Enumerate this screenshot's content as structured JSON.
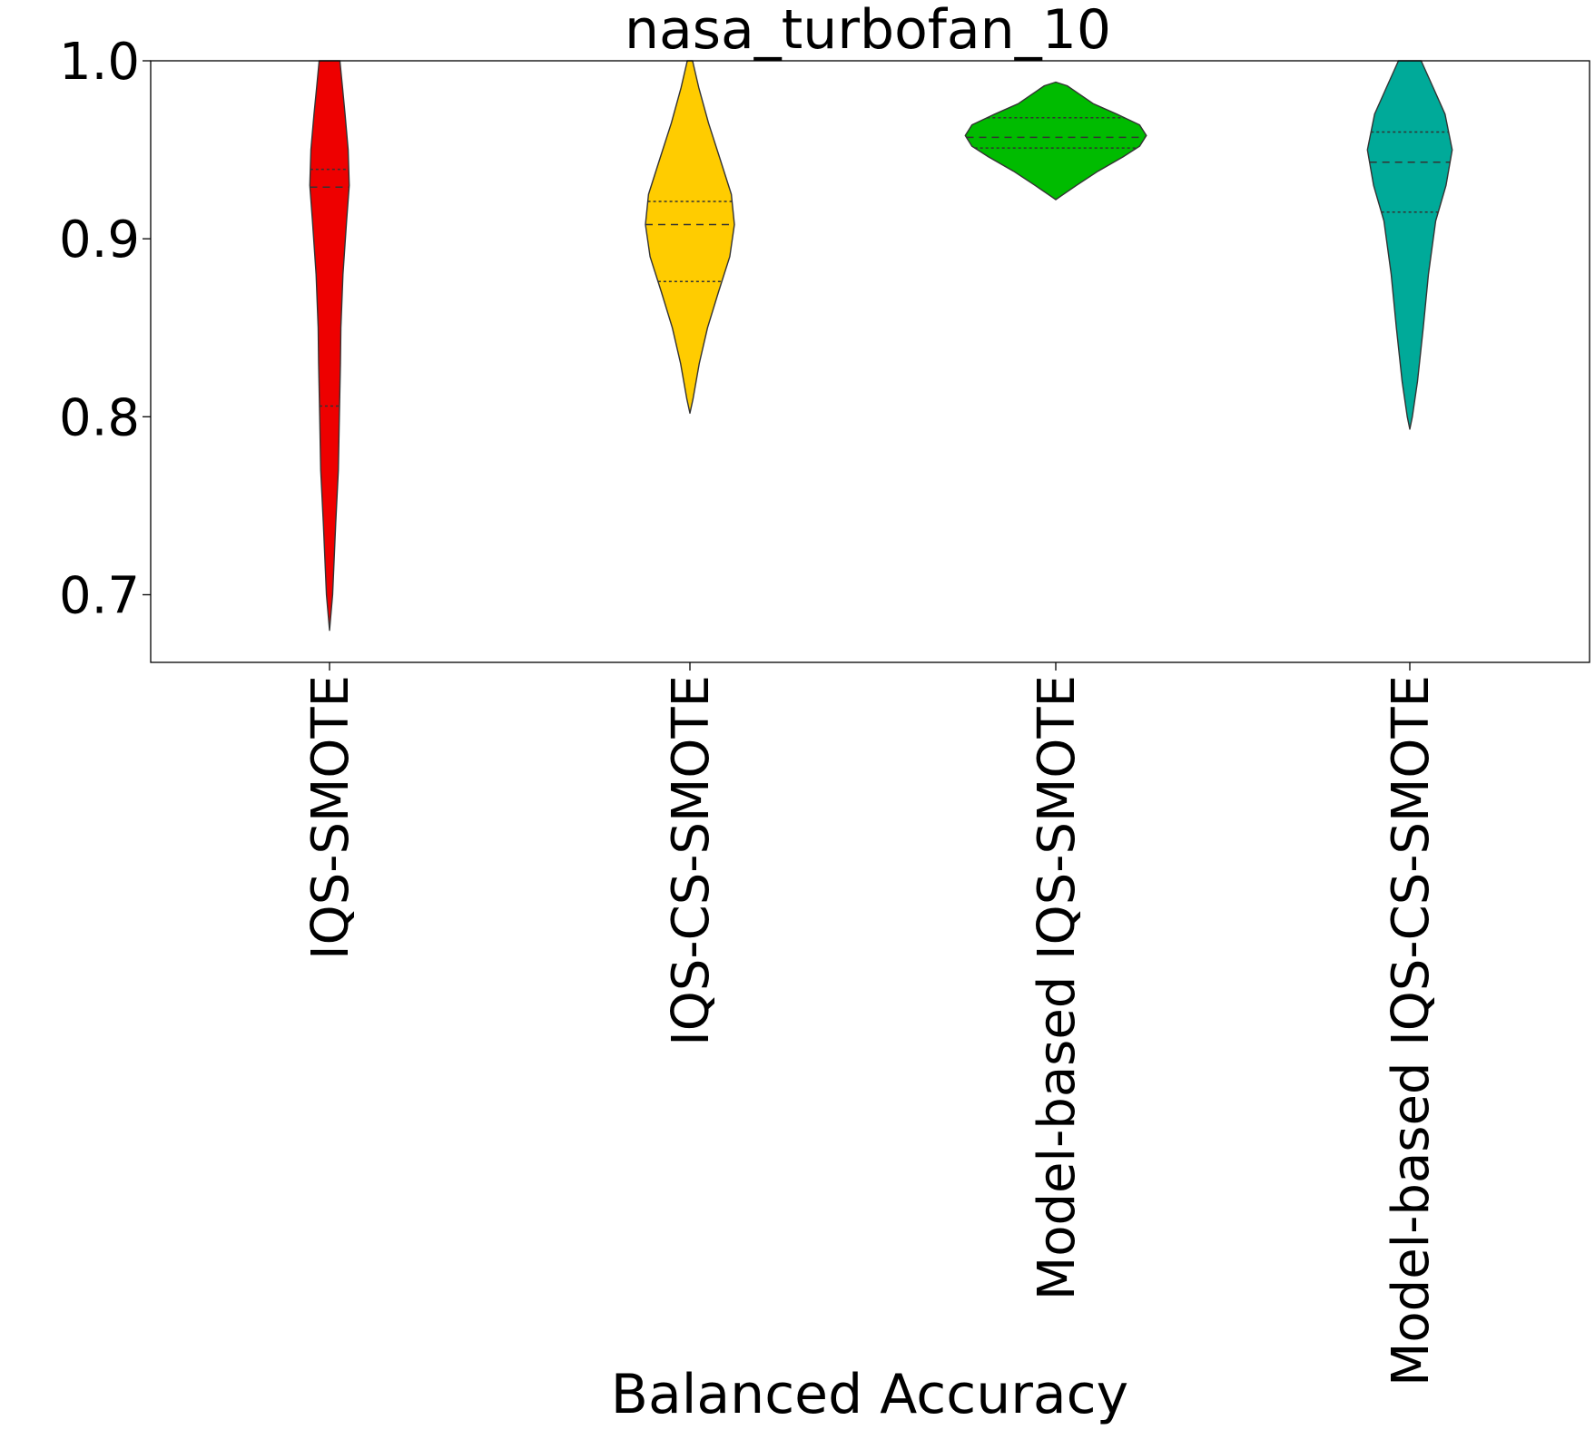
{
  "chart_data": {
    "type": "violin",
    "title": "nasa_turbofan_10",
    "xlabel": "Balanced Accuracy",
    "ylabel": "",
    "ylim": [
      0.662,
      1.0
    ],
    "yticks": [
      0.7,
      0.8,
      0.9,
      1.0
    ],
    "ytick_labels": [
      "0.7",
      "0.8",
      "0.9",
      "1.0"
    ],
    "grid": false,
    "categories": [
      "IQS-SMOTE",
      "IQS-CS-SMOTE",
      "Model-based IQS-SMOTE",
      "Model-based IQS-CS-SMOTE"
    ],
    "series": [
      {
        "category": "IQS-SMOTE",
        "color": "#ee0000",
        "min": 0.68,
        "max": 1.0,
        "quartiles": [
          0.806,
          0.929,
          0.939
        ],
        "profile": [
          [
            0.68,
            0.0
          ],
          [
            0.7,
            0.06
          ],
          [
            0.74,
            0.12
          ],
          [
            0.77,
            0.17
          ],
          [
            0.8,
            0.19
          ],
          [
            0.83,
            0.21
          ],
          [
            0.85,
            0.22
          ],
          [
            0.88,
            0.26
          ],
          [
            0.91,
            0.33
          ],
          [
            0.93,
            0.38
          ],
          [
            0.95,
            0.36
          ],
          [
            0.97,
            0.3
          ],
          [
            0.985,
            0.25
          ],
          [
            1.0,
            0.2
          ]
        ]
      },
      {
        "category": "IQS-CS-SMOTE",
        "color": "#ffcc00",
        "min": 0.802,
        "max": 1.0,
        "quartiles": [
          0.876,
          0.908,
          0.921
        ],
        "profile": [
          [
            0.802,
            0.0
          ],
          [
            0.81,
            0.06
          ],
          [
            0.83,
            0.18
          ],
          [
            0.85,
            0.34
          ],
          [
            0.87,
            0.55
          ],
          [
            0.89,
            0.77
          ],
          [
            0.908,
            0.86
          ],
          [
            0.925,
            0.8
          ],
          [
            0.945,
            0.58
          ],
          [
            0.965,
            0.36
          ],
          [
            0.985,
            0.17
          ],
          [
            1.0,
            0.05
          ]
        ]
      },
      {
        "category": "Model-based IQS-SMOTE",
        "color": "#00bb00",
        "min": 0.922,
        "max": 0.988,
        "quartiles": [
          0.951,
          0.957,
          0.968
        ],
        "profile": [
          [
            0.922,
            0.0
          ],
          [
            0.924,
            0.1
          ],
          [
            0.93,
            0.4
          ],
          [
            0.938,
            0.82
          ],
          [
            0.946,
            1.3
          ],
          [
            0.952,
            1.62
          ],
          [
            0.958,
            1.75
          ],
          [
            0.964,
            1.62
          ],
          [
            0.97,
            1.18
          ],
          [
            0.976,
            0.72
          ],
          [
            0.982,
            0.42
          ],
          [
            0.986,
            0.22
          ],
          [
            0.988,
            0.0
          ]
        ]
      },
      {
        "category": "Model-based IQS-CS-SMOTE",
        "color": "#00aa99",
        "min": 0.793,
        "max": 1.0,
        "quartiles": [
          0.915,
          0.943,
          0.96
        ],
        "profile": [
          [
            0.793,
            0.0
          ],
          [
            0.8,
            0.05
          ],
          [
            0.82,
            0.15
          ],
          [
            0.85,
            0.26
          ],
          [
            0.88,
            0.36
          ],
          [
            0.91,
            0.5
          ],
          [
            0.93,
            0.7
          ],
          [
            0.95,
            0.82
          ],
          [
            0.97,
            0.68
          ],
          [
            0.985,
            0.45
          ],
          [
            1.0,
            0.22
          ]
        ]
      }
    ]
  }
}
